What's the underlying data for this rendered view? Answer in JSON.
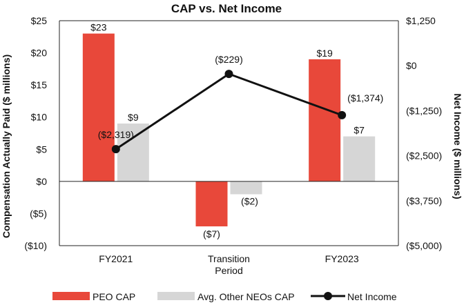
{
  "chart_data": {
    "type": "bar",
    "title": "CAP vs. Net Income",
    "categories": [
      [
        "FY2021"
      ],
      [
        "Transition",
        "Period"
      ],
      [
        "FY2023"
      ]
    ],
    "ylabel": "Compensation Actually Paid ($ millions)",
    "y2label": "Net Income ($ millions)",
    "ylim": [
      -10,
      25
    ],
    "y2lim": [
      -5000,
      1250
    ],
    "yticks": [
      "$25",
      "$20",
      "$15",
      "$10",
      "$5",
      "$0",
      "($5)",
      "($10)"
    ],
    "y2ticks": [
      "$1,250",
      "$0",
      "($1,250)",
      "($2,500)",
      "($3,750)",
      "($5,000)"
    ],
    "series": [
      {
        "name": "PEO CAP",
        "kind": "bar",
        "color": "#e8483a",
        "values": [
          23,
          -7,
          19
        ],
        "labels": [
          "$23",
          "($7)",
          "$19"
        ]
      },
      {
        "name": "Avg. Other NEOs CAP",
        "kind": "bar",
        "color": "#d6d6d6",
        "values": [
          9,
          -2,
          7
        ],
        "labels": [
          "$9",
          "($2)",
          "$7"
        ]
      },
      {
        "name": "Net Income",
        "kind": "line",
        "axis": "right",
        "color": "#111111",
        "values": [
          -2319,
          -229,
          -1374
        ],
        "labels": [
          "($2,319)",
          "($229)",
          "($1,374)"
        ]
      }
    ],
    "legend": [
      "PEO CAP",
      "Avg. Other NEOs CAP",
      "Net Income"
    ]
  }
}
